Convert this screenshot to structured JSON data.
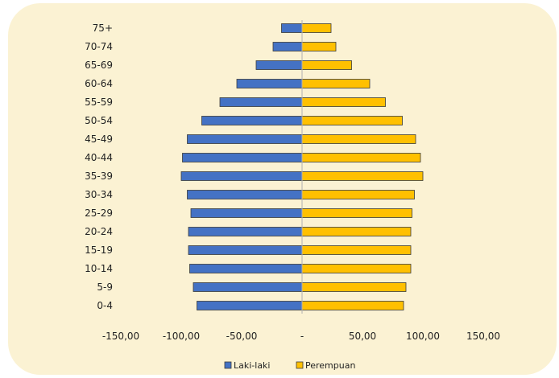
{
  "chart_data": {
    "type": "bar",
    "orientation": "horizontal",
    "categories": [
      "75+",
      "70-74",
      "65-69",
      "60-64",
      "55-59",
      "50-54",
      "45-49",
      "40-44",
      "35-39",
      "30-34",
      "25-29",
      "20-24",
      "15-19",
      "10-14",
      "5-9",
      "0-4"
    ],
    "series": [
      {
        "name": "Laki-laki",
        "color": "#4472c4",
        "values": [
          -17,
          -24,
          -38,
          -54,
          -68,
          -83,
          -95,
          -99,
          -100,
          -95,
          -92,
          -94,
          -94,
          -93,
          -90,
          -87
        ]
      },
      {
        "name": "Perempuan",
        "color": "#ffc000",
        "values": [
          24,
          28,
          41,
          56,
          69,
          83,
          94,
          98,
          100,
          93,
          91,
          90,
          90,
          90,
          86,
          84
        ]
      }
    ],
    "xlim": [
      -150,
      150
    ],
    "xticks": [
      -150,
      -100,
      -50,
      0,
      50,
      100,
      150
    ],
    "xtick_labels": [
      "-150,00",
      "-100,00",
      "-50,00",
      "-",
      "50,00",
      "100,00",
      "150,00"
    ],
    "legend_position": "bottom",
    "grid": false
  }
}
